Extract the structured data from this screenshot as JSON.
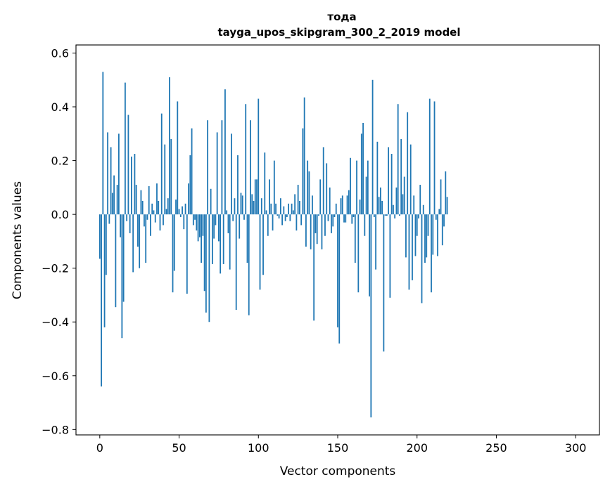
{
  "chart_data": {
    "type": "bar",
    "title": "тода",
    "subtitle": "tayga_upos_skipgram_300_2_2019 model",
    "xlabel": "Vector components",
    "ylabel": "Components values",
    "xlim": [
      -15,
      315
    ],
    "ylim": [
      -0.82,
      0.63
    ],
    "x_ticks": [
      0,
      50,
      100,
      150,
      200,
      250,
      300
    ],
    "y_ticks": [
      -0.8,
      -0.6,
      -0.4,
      -0.2,
      0.0,
      0.2,
      0.4,
      0.6
    ],
    "y_tick_labels": [
      "−0.8",
      "−0.6",
      "−0.4",
      "−0.2",
      "0.0",
      "0.2",
      "0.4",
      "0.6"
    ],
    "bar_color": "#1f77b4",
    "values": [
      -0.165,
      -0.64,
      0.53,
      -0.42,
      -0.225,
      0.305,
      -0.035,
      0.25,
      0.08,
      0.145,
      -0.345,
      0.11,
      0.3,
      -0.085,
      -0.46,
      -0.325,
      0.49,
      -0.025,
      0.37,
      -0.07,
      0.215,
      -0.215,
      0.225,
      0.11,
      -0.12,
      -0.2,
      0.09,
      0.05,
      -0.045,
      -0.18,
      -0.02,
      0.105,
      -0.08,
      0.04,
      0.015,
      -0.03,
      0.115,
      0.05,
      -0.06,
      0.375,
      -0.04,
      0.26,
      0.02,
      0.06,
      0.51,
      0.28,
      -0.29,
      -0.21,
      0.055,
      0.42,
      0.02,
      -0.01,
      0.03,
      -0.055,
      0.04,
      -0.295,
      0.115,
      0.22,
      0.32,
      -0.04,
      -0.02,
      -0.06,
      -0.1,
      -0.085,
      -0.18,
      -0.08,
      -0.285,
      -0.365,
      0.35,
      -0.4,
      0.095,
      -0.185,
      -0.09,
      -0.04,
      0.305,
      -0.1,
      -0.22,
      0.35,
      -0.185,
      0.465,
      0.015,
      -0.07,
      -0.205,
      0.3,
      -0.025,
      0.06,
      -0.355,
      0.22,
      -0.09,
      0.08,
      0.07,
      -0.02,
      0.41,
      -0.18,
      -0.375,
      0.35,
      0.075,
      0.05,
      0.13,
      0.13,
      0.43,
      -0.28,
      0.06,
      -0.225,
      0.23,
      0.015,
      -0.08,
      0.13,
      0.04,
      -0.06,
      0.2,
      0.04,
      -0.005,
      -0.015,
      0.06,
      -0.04,
      0.03,
      -0.025,
      -0.01,
      0.04,
      -0.025,
      0.04,
      0.015,
      0.075,
      -0.06,
      0.11,
      0.05,
      -0.04,
      0.32,
      0.435,
      -0.12,
      0.2,
      0.16,
      -0.13,
      0.07,
      -0.395,
      -0.07,
      -0.11,
      -0.005,
      0.13,
      -0.13,
      0.25,
      -0.08,
      0.19,
      -0.025,
      0.1,
      -0.07,
      -0.045,
      -0.01,
      0.04,
      -0.42,
      -0.48,
      0.06,
      0.07,
      -0.03,
      -0.03,
      0.07,
      0.09,
      0.21,
      -0.035,
      -0.01,
      -0.18,
      0.2,
      -0.29,
      0.055,
      0.3,
      0.34,
      -0.08,
      0.14,
      0.2,
      -0.305,
      -0.755,
      0.5,
      -0.01,
      -0.205,
      0.27,
      0.065,
      0.1,
      0.05,
      -0.51,
      -0.005,
      -0.005,
      0.25,
      -0.31,
      0.225,
      0.035,
      -0.015,
      0.1,
      0.41,
      -0.005,
      0.28,
      0.075,
      0.14,
      -0.16,
      0.38,
      -0.28,
      0.26,
      -0.245,
      0.07,
      -0.155,
      -0.08,
      -0.015,
      0.11,
      -0.33,
      0.035,
      -0.18,
      -0.16,
      -0.08,
      0.43,
      -0.29,
      -0.15,
      0.42,
      -0.02,
      -0.155,
      0.02,
      0.13,
      -0.115,
      -0.045,
      0.16,
      0.065
    ]
  }
}
